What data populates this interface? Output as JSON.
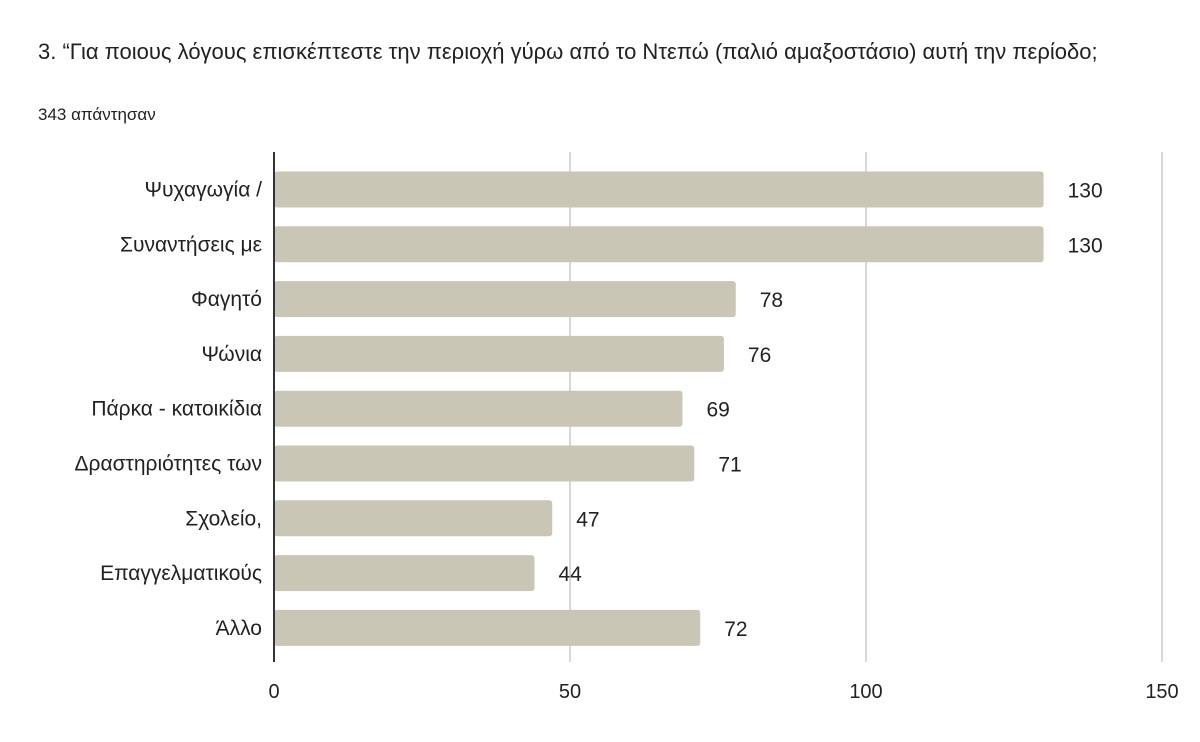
{
  "header": {
    "question": "3. “Για ποιους λόγους επισκέπτεστε την περιοχή γύρω από το Ντεπώ (παλιό αμαξοστάσιο) αυτή την περίοδο;",
    "responses": "343 απάντησαν"
  },
  "chart_data": {
    "type": "bar",
    "orientation": "horizontal",
    "categories": [
      "Ψυχαγωγία /",
      "Συναντήσεις με",
      "Φαγητό",
      "Ψώνια",
      "Πάρκα - κατοικίδια",
      "Δραστηριότητες των",
      "Σχολείο,",
      "Επαγγελματικούς",
      "Άλλο"
    ],
    "values": [
      130,
      130,
      78,
      76,
      69,
      71,
      47,
      44,
      72
    ],
    "xlim": [
      0,
      150
    ],
    "xticks": [
      0,
      50,
      100,
      150
    ],
    "grid": true,
    "colors": {
      "bar": "#c9c6b5",
      "grid": "#cccccc",
      "axis": "#333333"
    }
  }
}
